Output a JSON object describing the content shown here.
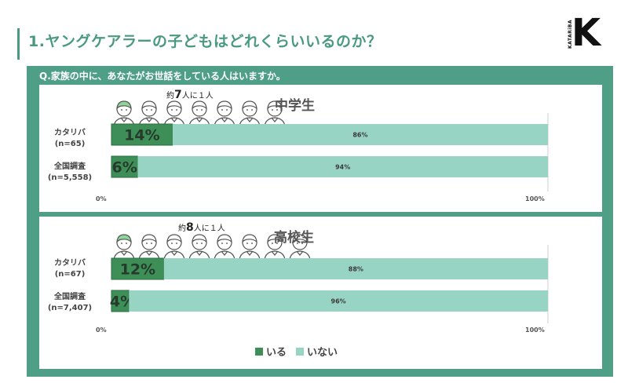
{
  "header": {
    "title": "1.ヤングケアラーの子どもはどれくらいいるのか？"
  },
  "logo": {
    "letter": "K",
    "side_text": "KATARiBA"
  },
  "question": "Q.家族の中に、あなたがお世話をしている人はいますか。",
  "colors": {
    "frame": "#4e9f86",
    "yes": "#3e8f57",
    "no": "#97d4c3",
    "highlight_person": "#8fd49a"
  },
  "chart_data": [
    {
      "type": "bar",
      "stacked": true,
      "orientation": "horizontal",
      "title": "中学生",
      "ratio_prefix": "約",
      "ratio_value": "7",
      "ratio_suffix": "人に１人",
      "categories": [
        [
          "カタリバ",
          "(n=65)"
        ],
        [
          "全国調査",
          "(n=5,558)"
        ]
      ],
      "series": [
        {
          "name": "いる",
          "values": [
            14,
            6
          ],
          "labels": [
            "14%",
            "6%"
          ]
        },
        {
          "name": "いない",
          "values": [
            86,
            94
          ],
          "labels": [
            "86%",
            "94%"
          ]
        }
      ],
      "xlim": [
        0,
        100
      ],
      "xticks": [
        "0%",
        "100%"
      ],
      "people_total": 7,
      "people_highlighted": 1
    },
    {
      "type": "bar",
      "stacked": true,
      "orientation": "horizontal",
      "title": "高校生",
      "ratio_prefix": "約",
      "ratio_value": "8",
      "ratio_suffix": "人に１人",
      "categories": [
        [
          "カタリバ",
          "(n=67)"
        ],
        [
          "全国調査",
          "(n=7,407)"
        ]
      ],
      "series": [
        {
          "name": "いる",
          "values": [
            12,
            4
          ],
          "labels": [
            "12%",
            "4%"
          ]
        },
        {
          "name": "いない",
          "values": [
            88,
            96
          ],
          "labels": [
            "88%",
            "96%"
          ]
        }
      ],
      "xlim": [
        0,
        100
      ],
      "xticks": [
        "0%",
        "100%"
      ],
      "people_total": 8,
      "people_highlighted": 1
    }
  ],
  "legend": {
    "yes_label": "いる",
    "no_label": "いない"
  }
}
